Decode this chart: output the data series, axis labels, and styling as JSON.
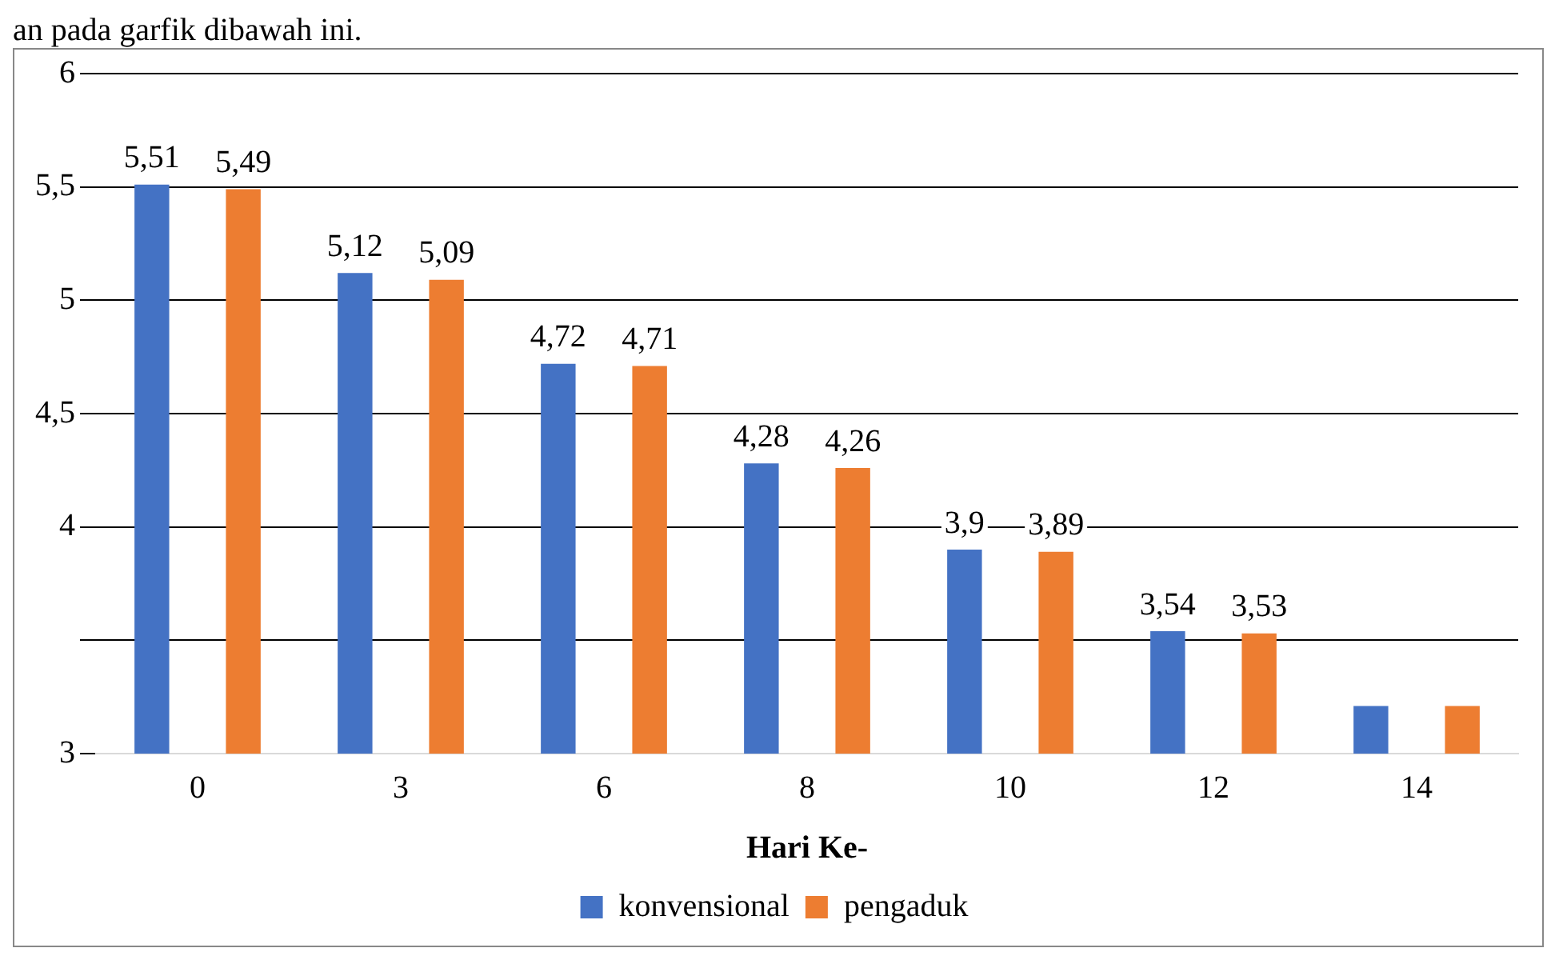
{
  "chart_data": {
    "type": "bar",
    "xlabel": "Hari Ke-",
    "annotations": [
      "an pada garfik dibawah ini."
    ],
    "categories": [
      "0",
      "3",
      "6",
      "8",
      "10",
      "12",
      "14"
    ],
    "series": [
      {
        "name": "konvensional",
        "color": "#4472c4",
        "values": [
          5.51,
          5.12,
          4.72,
          4.28,
          3.9,
          3.54,
          3.21
        ],
        "value_labels": [
          "5,51",
          "5,12",
          "4,72",
          "4,28",
          "3,9",
          "3,54",
          null
        ]
      },
      {
        "name": "pengaduk",
        "color": "#ed7d31",
        "values": [
          5.49,
          5.09,
          4.71,
          4.26,
          3.89,
          3.53,
          3.21
        ],
        "value_labels": [
          "5,49",
          "5,09",
          "4,71",
          "4,26",
          "3,89",
          "3,53",
          null
        ]
      }
    ],
    "ylim": [
      3,
      6
    ],
    "yticks": [
      3,
      {
        "value": 3.5,
        "label": null
      },
      4,
      {
        "value": 4.5,
        "label": "4,5"
      },
      5,
      {
        "value": 5.5,
        "label": "5,5"
      },
      6
    ],
    "grid": "y",
    "legend": "bottom"
  }
}
